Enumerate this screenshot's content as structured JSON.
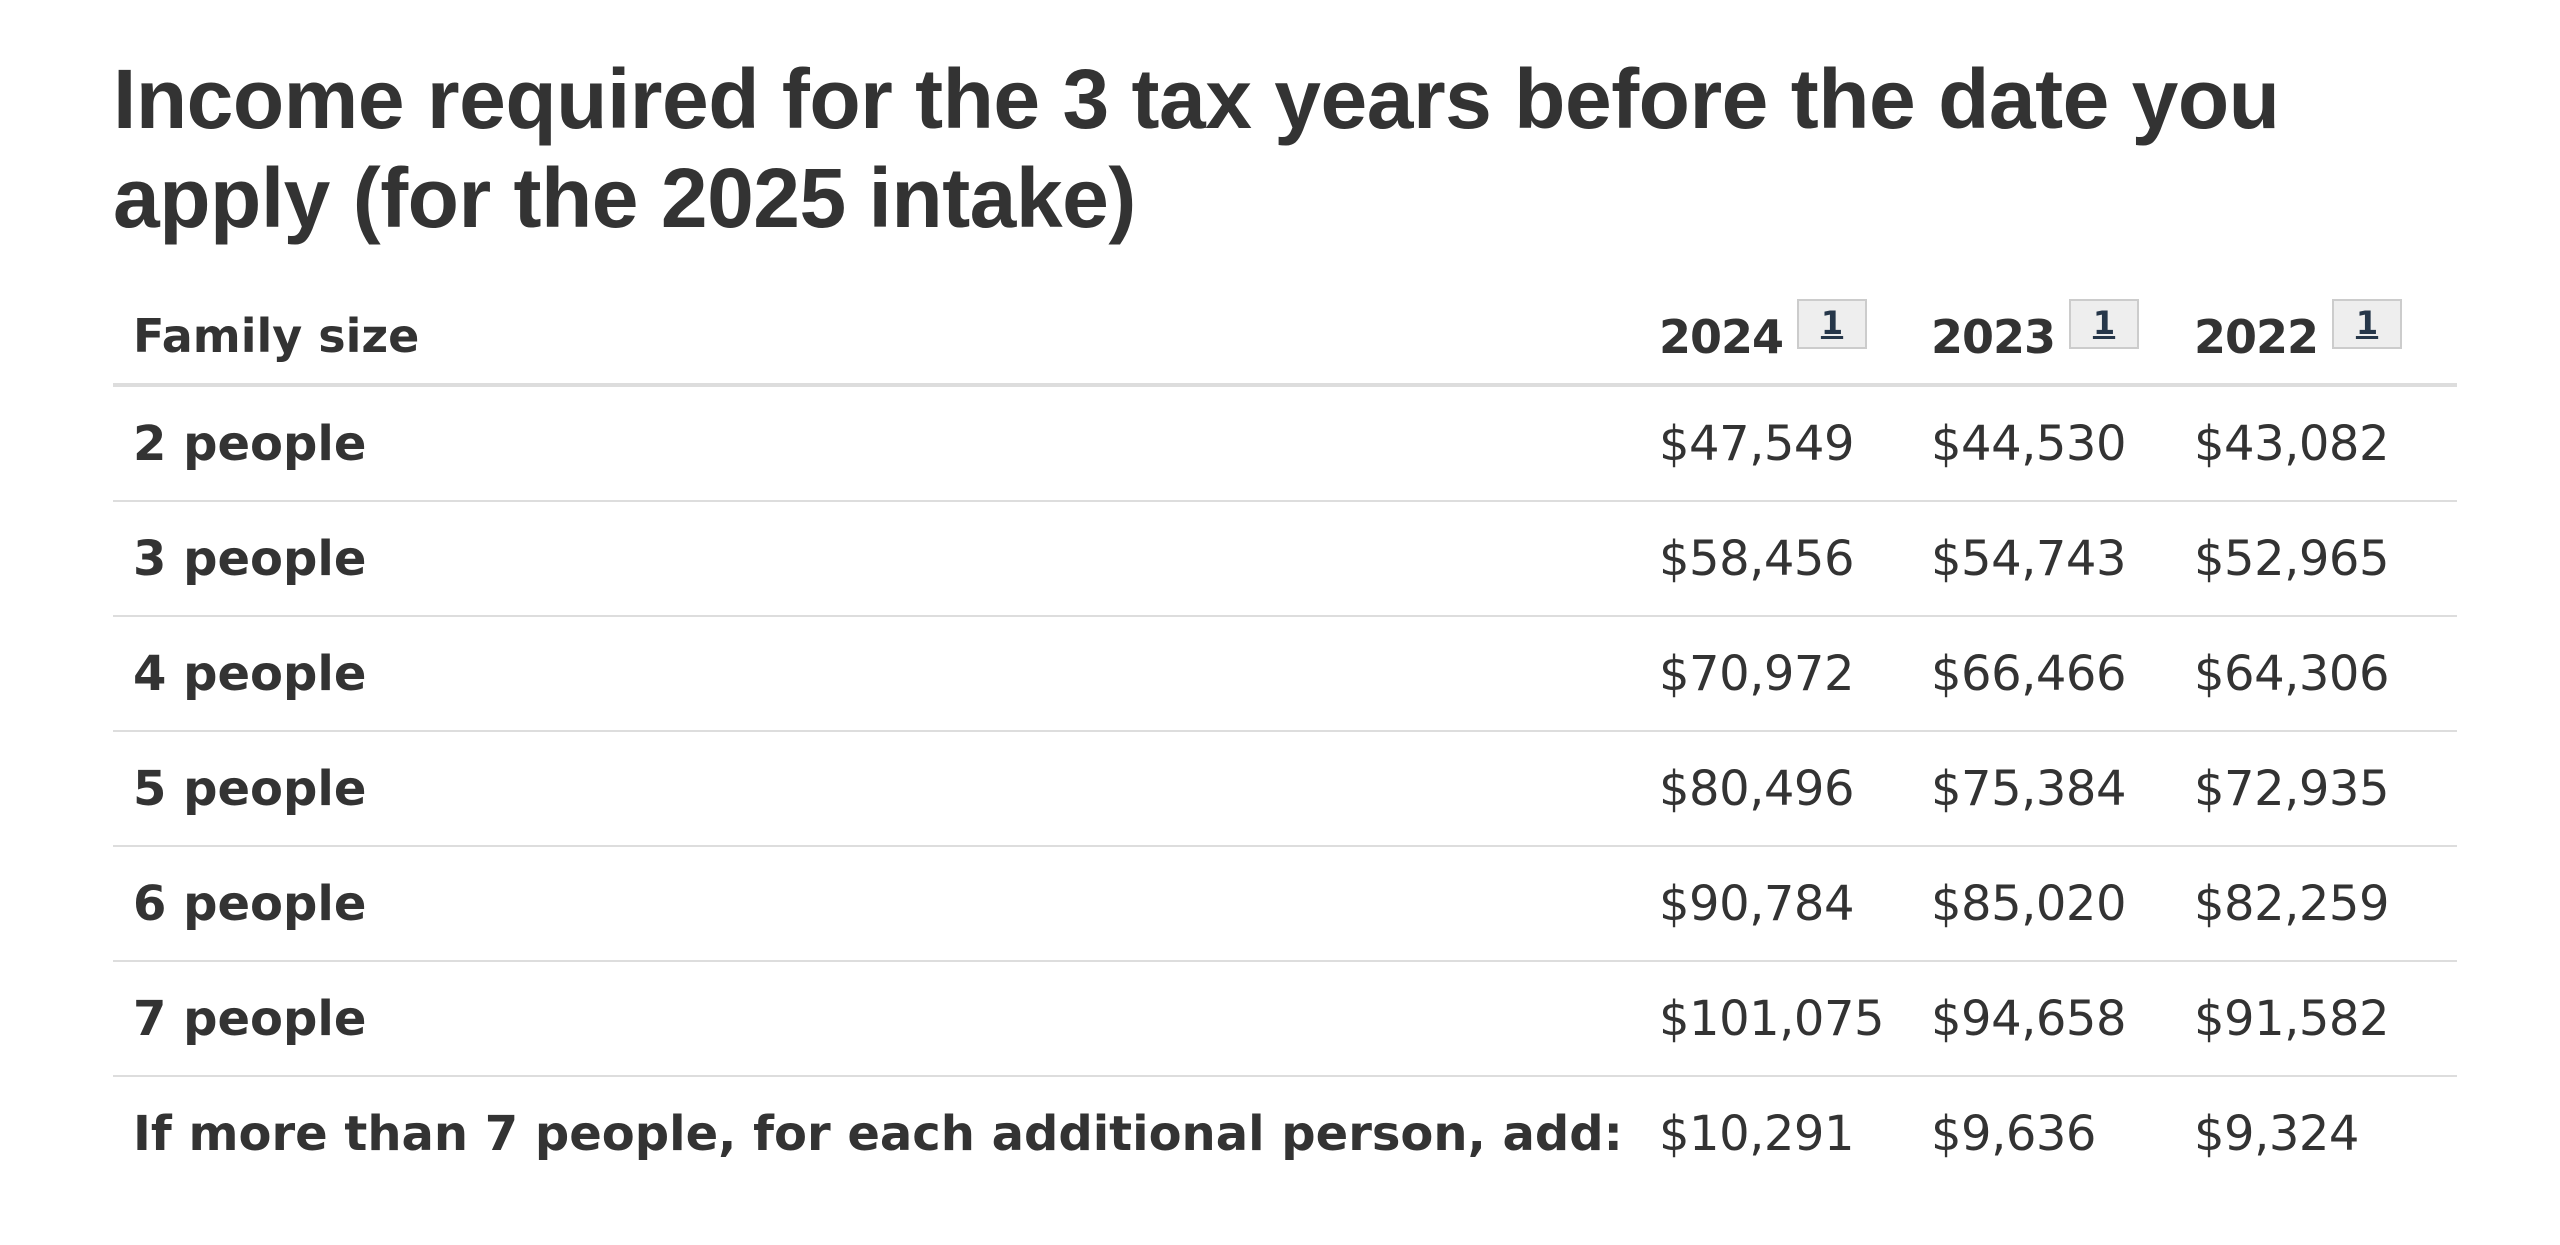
{
  "page": {
    "title": "Income required for the 3 tax years before the date you apply (for the 2025 intake)"
  },
  "table": {
    "header": {
      "label": "Family size",
      "years": [
        {
          "year": "2024",
          "footnote": "1"
        },
        {
          "year": "2023",
          "footnote": "1"
        },
        {
          "year": "2022",
          "footnote": "1"
        }
      ]
    },
    "rows": [
      {
        "label": "2 people",
        "values": [
          "$47,549",
          "$44,530",
          "$43,082"
        ]
      },
      {
        "label": "3 people",
        "values": [
          "$58,456",
          "$54,743",
          "$52,965"
        ]
      },
      {
        "label": "4 people",
        "values": [
          "$70,972",
          "$66,466",
          "$64,306"
        ]
      },
      {
        "label": "5 people",
        "values": [
          "$80,496",
          "$75,384",
          "$72,935"
        ]
      },
      {
        "label": "6 people",
        "values": [
          "$90,784",
          "$85,020",
          "$82,259"
        ]
      },
      {
        "label": "7 people",
        "values": [
          "$101,075",
          "$94,658",
          "$91,582"
        ]
      },
      {
        "label": "If more than 7 people, for each additional person, add:",
        "values": [
          "$10,291",
          "$9,636",
          "$9,324"
        ]
      }
    ]
  },
  "colors": {
    "text": "#333333",
    "border": "#dddddd",
    "footnote_bg": "#eeeeee",
    "footnote_link": "#26374a"
  }
}
